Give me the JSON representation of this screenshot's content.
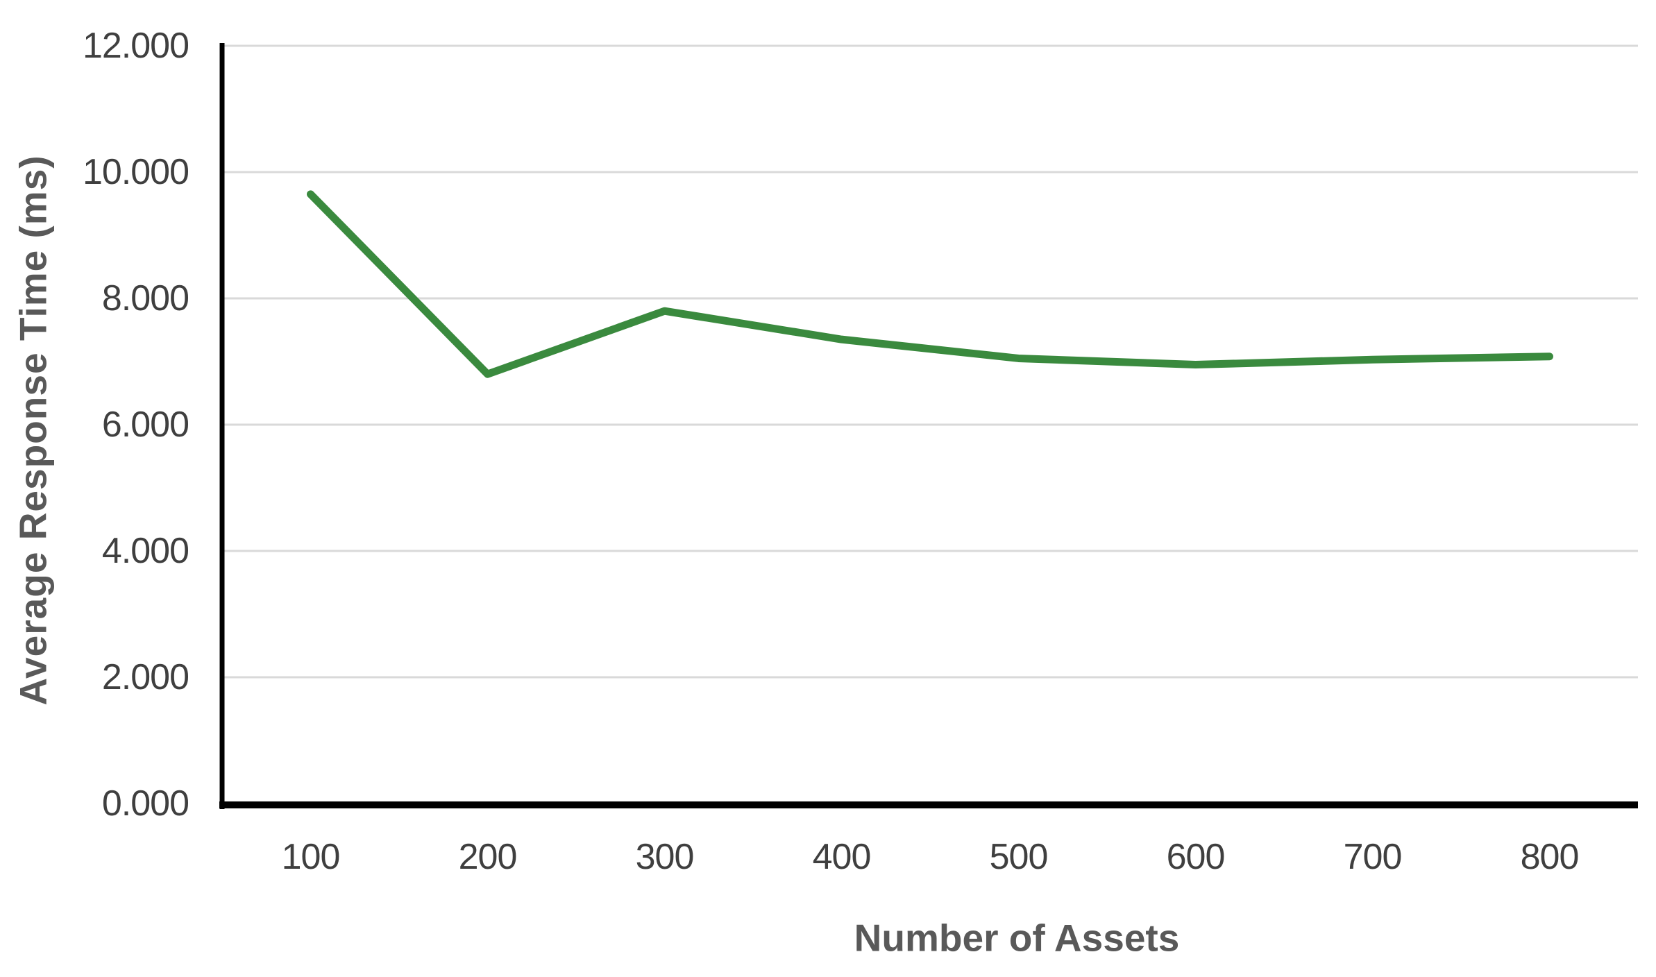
{
  "chart_data": {
    "type": "line",
    "title": "",
    "xlabel": "Number of Assets",
    "ylabel": "Average Response Time (ms)",
    "categories": [
      100,
      200,
      300,
      400,
      500,
      600,
      700,
      800
    ],
    "x_tick_labels": [
      "100",
      "200",
      "300",
      "400",
      "500",
      "600",
      "700",
      "800"
    ],
    "values": [
      9.65,
      6.8,
      7.8,
      7.35,
      7.05,
      6.95,
      7.03,
      7.08
    ],
    "series_name": "Average Response Time (ms)",
    "ylim": [
      0,
      12
    ],
    "y_ticks": [
      0,
      2,
      4,
      6,
      8,
      10,
      12
    ],
    "y_tick_labels": [
      "0.000",
      "2.000",
      "4.000",
      "6.000",
      "8.000",
      "10.000",
      "12.000"
    ],
    "grid": "horizontal",
    "legend_position": "none",
    "colors": {
      "line": "#3a8a3e",
      "gridline": "#d9d9d9",
      "axis_line": "#000000",
      "tick_text": "#3f3f3f",
      "axis_title_text": "#595959",
      "background": "#ffffff"
    }
  }
}
